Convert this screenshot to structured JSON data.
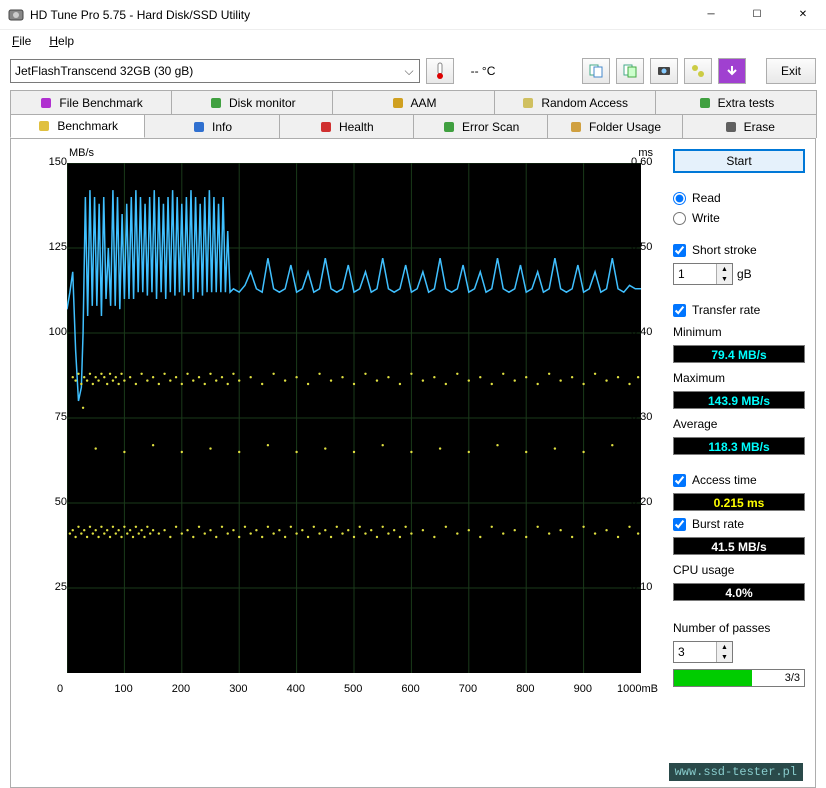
{
  "window": {
    "title": "HD Tune Pro 5.75 - Hard Disk/SSD Utility"
  },
  "menu": {
    "file": "File",
    "help": "Help"
  },
  "toolbar": {
    "drive": "JetFlashTranscend 32GB (30 gB)",
    "temp": "-- °C",
    "exit": "Exit"
  },
  "tabs_row1": [
    {
      "label": "File Benchmark",
      "icon_color": "#b030d0"
    },
    {
      "label": "Disk monitor",
      "icon_color": "#40a040"
    },
    {
      "label": "AAM",
      "icon_color": "#d0a020"
    },
    {
      "label": "Random Access",
      "icon_color": "#d0c060"
    },
    {
      "label": "Extra tests",
      "icon_color": "#40a040"
    }
  ],
  "tabs_row2": [
    {
      "label": "Benchmark",
      "icon_color": "#e0c040",
      "active": true
    },
    {
      "label": "Info",
      "icon_color": "#3070d0"
    },
    {
      "label": "Health",
      "icon_color": "#d03030"
    },
    {
      "label": "Error Scan",
      "icon_color": "#40a040"
    },
    {
      "label": "Folder Usage",
      "icon_color": "#d0a040"
    },
    {
      "label": "Erase",
      "icon_color": "#606060"
    }
  ],
  "chart": {
    "y_left_title": "MB/s",
    "y_right_title": "ms",
    "y_left_ticks": [
      150,
      125,
      100,
      75,
      50,
      25
    ],
    "y_left_range": [
      0,
      150
    ],
    "y_right_ticks": [
      "0.60",
      "0.50",
      "0.40",
      "0.30",
      "0.20",
      "0.10"
    ],
    "y_right_range": [
      0,
      0.6
    ],
    "x_ticks": [
      0,
      100,
      200,
      300,
      400,
      500,
      600,
      700,
      800,
      900
    ],
    "x_max_label": "1000mB",
    "x_range": [
      0,
      1000
    ],
    "line_color": "#40c0ff",
    "scatter_color": "#e0e040",
    "grid_color": "#1a3a1a",
    "background": "#000000",
    "transfer_line": [
      [
        0,
        107
      ],
      [
        5,
        112
      ],
      [
        10,
        118
      ],
      [
        15,
        95
      ],
      [
        20,
        80
      ],
      [
        25,
        84
      ],
      [
        28,
        100
      ],
      [
        32,
        140
      ],
      [
        36,
        105
      ],
      [
        40,
        142
      ],
      [
        44,
        108
      ],
      [
        48,
        140
      ],
      [
        52,
        108
      ],
      [
        56,
        138
      ],
      [
        60,
        105
      ],
      [
        64,
        140
      ],
      [
        68,
        110
      ],
      [
        72,
        125
      ],
      [
        76,
        108
      ],
      [
        80,
        142
      ],
      [
        84,
        108
      ],
      [
        88,
        140
      ],
      [
        92,
        107
      ],
      [
        96,
        135
      ],
      [
        100,
        110
      ],
      [
        104,
        138
      ],
      [
        108,
        110
      ],
      [
        112,
        140
      ],
      [
        116,
        110
      ],
      [
        120,
        142
      ],
      [
        124,
        112
      ],
      [
        128,
        140
      ],
      [
        132,
        112
      ],
      [
        136,
        138
      ],
      [
        140,
        111
      ],
      [
        144,
        140
      ],
      [
        148,
        112
      ],
      [
        152,
        142
      ],
      [
        156,
        110
      ],
      [
        160,
        140
      ],
      [
        164,
        112
      ],
      [
        168,
        138
      ],
      [
        172,
        110
      ],
      [
        176,
        140
      ],
      [
        180,
        112
      ],
      [
        184,
        142
      ],
      [
        188,
        111
      ],
      [
        192,
        140
      ],
      [
        196,
        112
      ],
      [
        200,
        138
      ],
      [
        204,
        111
      ],
      [
        208,
        140
      ],
      [
        212,
        112
      ],
      [
        216,
        142
      ],
      [
        220,
        110
      ],
      [
        224,
        140
      ],
      [
        228,
        112
      ],
      [
        232,
        138
      ],
      [
        236,
        111
      ],
      [
        240,
        140
      ],
      [
        244,
        112
      ],
      [
        248,
        142
      ],
      [
        252,
        112
      ],
      [
        256,
        140
      ],
      [
        260,
        112
      ],
      [
        264,
        138
      ],
      [
        268,
        112
      ],
      [
        272,
        140
      ],
      [
        276,
        112
      ],
      [
        280,
        130
      ],
      [
        284,
        112
      ],
      [
        290,
        113
      ],
      [
        300,
        112
      ],
      [
        310,
        114
      ],
      [
        320,
        118
      ],
      [
        330,
        113
      ],
      [
        340,
        112
      ],
      [
        350,
        122
      ],
      [
        360,
        113
      ],
      [
        370,
        112
      ],
      [
        380,
        113
      ],
      [
        390,
        120
      ],
      [
        400,
        112
      ],
      [
        410,
        113
      ],
      [
        420,
        118
      ],
      [
        430,
        112
      ],
      [
        440,
        113
      ],
      [
        450,
        122
      ],
      [
        460,
        113
      ],
      [
        470,
        112
      ],
      [
        480,
        113
      ],
      [
        490,
        120
      ],
      [
        500,
        112
      ],
      [
        510,
        113
      ],
      [
        520,
        118
      ],
      [
        530,
        112
      ],
      [
        540,
        113
      ],
      [
        550,
        122
      ],
      [
        560,
        113
      ],
      [
        570,
        112
      ],
      [
        580,
        113
      ],
      [
        590,
        120
      ],
      [
        600,
        112
      ],
      [
        610,
        113
      ],
      [
        620,
        118
      ],
      [
        630,
        112
      ],
      [
        640,
        113
      ],
      [
        650,
        122
      ],
      [
        660,
        113
      ],
      [
        670,
        112
      ],
      [
        680,
        113
      ],
      [
        690,
        120
      ],
      [
        700,
        112
      ],
      [
        710,
        113
      ],
      [
        720,
        118
      ],
      [
        730,
        112
      ],
      [
        740,
        113
      ],
      [
        750,
        122
      ],
      [
        760,
        113
      ],
      [
        770,
        112
      ],
      [
        780,
        113
      ],
      [
        790,
        120
      ],
      [
        800,
        112
      ],
      [
        810,
        113
      ],
      [
        820,
        118
      ],
      [
        830,
        112
      ],
      [
        840,
        113
      ],
      [
        850,
        122
      ],
      [
        860,
        113
      ],
      [
        870,
        112
      ],
      [
        880,
        113
      ],
      [
        890,
        120
      ],
      [
        900,
        112
      ],
      [
        910,
        113
      ],
      [
        920,
        118
      ],
      [
        930,
        112
      ],
      [
        940,
        113
      ],
      [
        950,
        122
      ],
      [
        960,
        113
      ],
      [
        970,
        112
      ],
      [
        980,
        114
      ],
      [
        990,
        113
      ],
      [
        1000,
        113
      ]
    ],
    "scatter_top": [
      [
        10,
        87
      ],
      [
        15,
        86
      ],
      [
        20,
        88
      ],
      [
        25,
        85
      ],
      [
        28,
        78
      ],
      [
        30,
        87
      ],
      [
        35,
        86
      ],
      [
        40,
        88
      ],
      [
        45,
        85
      ],
      [
        50,
        87
      ],
      [
        55,
        86
      ],
      [
        60,
        88
      ],
      [
        65,
        87
      ],
      [
        70,
        85
      ],
      [
        75,
        88
      ],
      [
        80,
        86
      ],
      [
        85,
        87
      ],
      [
        90,
        85
      ],
      [
        95,
        88
      ],
      [
        100,
        86
      ],
      [
        110,
        87
      ],
      [
        120,
        85
      ],
      [
        130,
        88
      ],
      [
        140,
        86
      ],
      [
        150,
        87
      ],
      [
        160,
        85
      ],
      [
        170,
        88
      ],
      [
        180,
        86
      ],
      [
        190,
        87
      ],
      [
        200,
        85
      ],
      [
        210,
        88
      ],
      [
        220,
        86
      ],
      [
        230,
        87
      ],
      [
        240,
        85
      ],
      [
        250,
        88
      ],
      [
        260,
        86
      ],
      [
        270,
        87
      ],
      [
        280,
        85
      ],
      [
        290,
        88
      ],
      [
        300,
        86
      ],
      [
        320,
        87
      ],
      [
        340,
        85
      ],
      [
        360,
        88
      ],
      [
        380,
        86
      ],
      [
        400,
        87
      ],
      [
        420,
        85
      ],
      [
        440,
        88
      ],
      [
        460,
        86
      ],
      [
        480,
        87
      ],
      [
        500,
        85
      ],
      [
        520,
        88
      ],
      [
        540,
        86
      ],
      [
        560,
        87
      ],
      [
        580,
        85
      ],
      [
        600,
        88
      ],
      [
        620,
        86
      ],
      [
        640,
        87
      ],
      [
        660,
        85
      ],
      [
        680,
        88
      ],
      [
        700,
        86
      ],
      [
        720,
        87
      ],
      [
        740,
        85
      ],
      [
        760,
        88
      ],
      [
        780,
        86
      ],
      [
        800,
        87
      ],
      [
        820,
        85
      ],
      [
        840,
        88
      ],
      [
        860,
        86
      ],
      [
        880,
        87
      ],
      [
        900,
        85
      ],
      [
        920,
        88
      ],
      [
        940,
        86
      ],
      [
        960,
        87
      ],
      [
        980,
        85
      ],
      [
        995,
        87
      ]
    ],
    "scatter_mid": [
      [
        50,
        66
      ],
      [
        100,
        65
      ],
      [
        150,
        67
      ],
      [
        200,
        65
      ],
      [
        250,
        66
      ],
      [
        300,
        65
      ],
      [
        350,
        67
      ],
      [
        400,
        65
      ],
      [
        450,
        66
      ],
      [
        500,
        65
      ],
      [
        550,
        67
      ],
      [
        600,
        65
      ],
      [
        650,
        66
      ],
      [
        700,
        65
      ],
      [
        750,
        67
      ],
      [
        800,
        65
      ],
      [
        850,
        66
      ],
      [
        900,
        65
      ],
      [
        950,
        67
      ]
    ],
    "scatter_low": [
      [
        5,
        41
      ],
      [
        10,
        42
      ],
      [
        15,
        40
      ],
      [
        20,
        43
      ],
      [
        25,
        41
      ],
      [
        30,
        42
      ],
      [
        35,
        40
      ],
      [
        40,
        43
      ],
      [
        45,
        41
      ],
      [
        50,
        42
      ],
      [
        55,
        40
      ],
      [
        60,
        43
      ],
      [
        65,
        41
      ],
      [
        70,
        42
      ],
      [
        75,
        40
      ],
      [
        80,
        43
      ],
      [
        85,
        41
      ],
      [
        90,
        42
      ],
      [
        95,
        40
      ],
      [
        100,
        43
      ],
      [
        105,
        41
      ],
      [
        110,
        42
      ],
      [
        115,
        40
      ],
      [
        120,
        43
      ],
      [
        125,
        41
      ],
      [
        130,
        42
      ],
      [
        135,
        40
      ],
      [
        140,
        43
      ],
      [
        145,
        41
      ],
      [
        150,
        42
      ],
      [
        160,
        41
      ],
      [
        170,
        42
      ],
      [
        180,
        40
      ],
      [
        190,
        43
      ],
      [
        200,
        41
      ],
      [
        210,
        42
      ],
      [
        220,
        40
      ],
      [
        230,
        43
      ],
      [
        240,
        41
      ],
      [
        250,
        42
      ],
      [
        260,
        40
      ],
      [
        270,
        43
      ],
      [
        280,
        41
      ],
      [
        290,
        42
      ],
      [
        300,
        40
      ],
      [
        310,
        43
      ],
      [
        320,
        41
      ],
      [
        330,
        42
      ],
      [
        340,
        40
      ],
      [
        350,
        43
      ],
      [
        360,
        41
      ],
      [
        370,
        42
      ],
      [
        380,
        40
      ],
      [
        390,
        43
      ],
      [
        400,
        41
      ],
      [
        410,
        42
      ],
      [
        420,
        40
      ],
      [
        430,
        43
      ],
      [
        440,
        41
      ],
      [
        450,
        42
      ],
      [
        460,
        40
      ],
      [
        470,
        43
      ],
      [
        480,
        41
      ],
      [
        490,
        42
      ],
      [
        500,
        40
      ],
      [
        510,
        43
      ],
      [
        520,
        41
      ],
      [
        530,
        42
      ],
      [
        540,
        40
      ],
      [
        550,
        43
      ],
      [
        560,
        41
      ],
      [
        570,
        42
      ],
      [
        580,
        40
      ],
      [
        590,
        43
      ],
      [
        600,
        41
      ],
      [
        620,
        42
      ],
      [
        640,
        40
      ],
      [
        660,
        43
      ],
      [
        680,
        41
      ],
      [
        700,
        42
      ],
      [
        720,
        40
      ],
      [
        740,
        43
      ],
      [
        760,
        41
      ],
      [
        780,
        42
      ],
      [
        800,
        40
      ],
      [
        820,
        43
      ],
      [
        840,
        41
      ],
      [
        860,
        42
      ],
      [
        880,
        40
      ],
      [
        900,
        43
      ],
      [
        920,
        41
      ],
      [
        940,
        42
      ],
      [
        960,
        40
      ],
      [
        980,
        43
      ],
      [
        995,
        41
      ]
    ]
  },
  "side": {
    "start": "Start",
    "read": "Read",
    "write": "Write",
    "short_stroke": "Short stroke",
    "short_stroke_val": "1",
    "short_stroke_unit": "gB",
    "transfer_rate": "Transfer rate",
    "minimum": "Minimum",
    "minimum_val": "79.4 MB/s",
    "maximum": "Maximum",
    "maximum_val": "143.9 MB/s",
    "average": "Average",
    "average_val": "118.3 MB/s",
    "access_time": "Access time",
    "access_time_val": "0.215 ms",
    "burst_rate": "Burst rate",
    "burst_rate_val": "41.5 MB/s",
    "cpu_usage": "CPU usage",
    "cpu_usage_val": "4.0%",
    "passes": "Number of passes",
    "passes_val": "3",
    "progress_txt": "3/3"
  },
  "watermark": "www.ssd-tester.pl"
}
